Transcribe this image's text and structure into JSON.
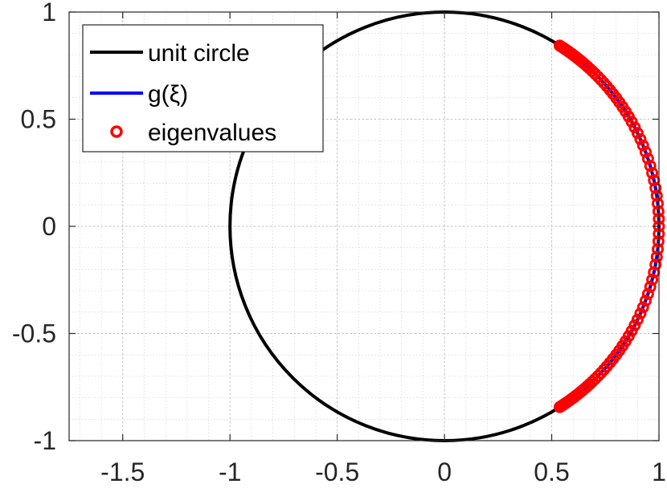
{
  "chart_data": {
    "type": "line",
    "title": "",
    "xlabel": "",
    "ylabel": "",
    "xlim": [
      -1.75,
      1
    ],
    "ylim": [
      -1,
      1
    ],
    "xticks": [
      {
        "value": -1.5,
        "label": "-1.5"
      },
      {
        "value": -1,
        "label": "-1"
      },
      {
        "value": -0.5,
        "label": "-0.5"
      },
      {
        "value": 0,
        "label": "0"
      },
      {
        "value": 0.5,
        "label": "0.5"
      },
      {
        "value": 1,
        "label": "1"
      }
    ],
    "yticks": [
      {
        "value": -1,
        "label": "-1"
      },
      {
        "value": -0.5,
        "label": "-0.5"
      },
      {
        "value": 0,
        "label": "0"
      },
      {
        "value": 0.5,
        "label": "0.5"
      },
      {
        "value": 1,
        "label": "1"
      }
    ],
    "grid": true,
    "minor_grid": true,
    "legend_position": "top-left",
    "legend": [
      {
        "label": "unit circle",
        "marker": "line",
        "color": "#000000"
      },
      {
        "label": "g(ξ)",
        "marker": "line",
        "color": "#0000ff"
      },
      {
        "label": "eigenvalues",
        "marker": "circle",
        "color": "#ff0000"
      }
    ],
    "series": [
      {
        "name": "unit circle",
        "kind": "parametric-circle",
        "center": [
          0,
          0
        ],
        "radius": 1,
        "color": "#000000"
      },
      {
        "name": "g(ξ)",
        "kind": "arc",
        "center": [
          0,
          0
        ],
        "radius": 1,
        "angle_range_deg": [
          -57.5,
          57.5
        ],
        "color": "#0000ff"
      },
      {
        "name": "eigenvalues",
        "kind": "scatter-on-circle",
        "radius": 1,
        "angles_deg": [
          -57.5,
          -57.0,
          -56.5,
          -56.0,
          -55.5,
          -55.0,
          -54.5,
          -54.0,
          -53.4,
          -52.8,
          -52.2,
          -51.5,
          -50.8,
          -50.0,
          -49.2,
          -48.3,
          -47.4,
          -46.4,
          -45.4,
          -44.3,
          -43.2,
          -42.0,
          -40.8,
          -39.5,
          -38.2,
          -36.8,
          -35.4,
          -33.9,
          -32.4,
          -30.8,
          -29.2,
          -27.5,
          -25.8,
          -24.0,
          -22.2,
          -20.3,
          -18.4,
          -16.4,
          -14.4,
          -12.4,
          -10.3,
          -8.2,
          -6.1,
          -4.0,
          -2.0,
          0.0,
          2.0,
          4.0,
          6.1,
          8.2,
          10.3,
          12.4,
          14.4,
          16.4,
          18.4,
          20.3,
          22.2,
          24.0,
          25.8,
          27.5,
          29.2,
          30.8,
          32.4,
          33.9,
          35.4,
          36.8,
          38.2,
          39.5,
          40.8,
          42.0,
          43.2,
          44.3,
          45.4,
          46.4,
          47.4,
          48.3,
          49.2,
          50.0,
          50.8,
          51.5,
          52.2,
          52.8,
          53.4,
          54.0,
          54.5,
          55.0,
          55.5,
          56.0,
          56.5,
          57.0,
          57.5
        ],
        "color": "#ff0000"
      }
    ]
  }
}
